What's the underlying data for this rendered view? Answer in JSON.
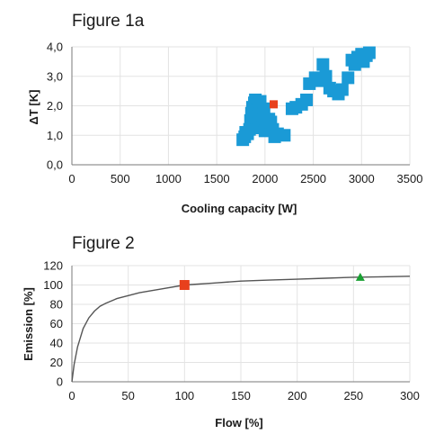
{
  "chart_data": [
    {
      "type": "scatter",
      "title": "Figure 1a",
      "xlabel": "Cooling capacity [W]",
      "ylabel": "ΔT [K]",
      "xlim": [
        0,
        3500
      ],
      "ylim": [
        0,
        4
      ],
      "grid": true,
      "xticks": [
        "0",
        "500",
        "1000",
        "1500",
        "2000",
        "2500",
        "3000",
        "3500"
      ],
      "yticks": [
        "0,0",
        "1,0",
        "2,0",
        "3,0",
        "4,0"
      ],
      "series": [
        {
          "color": "#1a9ad6",
          "marker": "square",
          "points": [
            [
              1770,
              0.85
            ],
            [
              1790,
              0.95
            ],
            [
              1800,
              1.1
            ],
            [
              1820,
              1.05
            ],
            [
              1840,
              1.2
            ],
            [
              1850,
              1.5
            ],
            [
              1860,
              1.75
            ],
            [
              1870,
              1.95
            ],
            [
              1880,
              1.3
            ],
            [
              1890,
              2.1
            ],
            [
              1900,
              2.2
            ],
            [
              1910,
              1.6
            ],
            [
              1920,
              1.85
            ],
            [
              1930,
              2.05
            ],
            [
              1940,
              1.4
            ],
            [
              1950,
              2.15
            ],
            [
              1960,
              1.25
            ],
            [
              1970,
              1.7
            ],
            [
              1980,
              1.5
            ],
            [
              1990,
              1.9
            ],
            [
              2000,
              1.15
            ],
            [
              2010,
              1.35
            ],
            [
              2040,
              1.55
            ],
            [
              2060,
              1.45
            ],
            [
              2080,
              1.2
            ],
            [
              2100,
              0.95
            ],
            [
              2130,
              1.05
            ],
            [
              2200,
              1.0
            ],
            [
              2280,
              1.9
            ],
            [
              2320,
              1.95
            ],
            [
              2380,
              2.05
            ],
            [
              2430,
              2.2
            ],
            [
              2460,
              2.75
            ],
            [
              2520,
              2.95
            ],
            [
              2570,
              2.85
            ],
            [
              2600,
              3.4
            ],
            [
              2630,
              3.0
            ],
            [
              2670,
              2.6
            ],
            [
              2710,
              2.5
            ],
            [
              2760,
              2.4
            ],
            [
              2800,
              2.55
            ],
            [
              2860,
              2.95
            ],
            [
              2900,
              3.55
            ],
            [
              2930,
              3.4
            ],
            [
              2960,
              3.65
            ],
            [
              3000,
              3.75
            ],
            [
              3020,
              3.5
            ],
            [
              3050,
              3.7
            ],
            [
              3080,
              3.8
            ]
          ]
        },
        {
          "color": "#e8401c",
          "marker": "square",
          "points": [
            [
              2090,
              2.05
            ]
          ]
        }
      ]
    },
    {
      "type": "line",
      "title": "Figure 2",
      "xlabel": "Flow [%]",
      "ylabel": "Emission [%]",
      "xlim": [
        0,
        300
      ],
      "ylim": [
        0,
        120
      ],
      "grid": true,
      "xticks": [
        "0",
        "50",
        "100",
        "150",
        "200",
        "250",
        "300"
      ],
      "yticks": [
        "0",
        "20",
        "40",
        "60",
        "80",
        "100",
        "120"
      ],
      "curve": {
        "color": "#555555",
        "x": [
          0,
          2,
          5,
          10,
          15,
          20,
          25,
          30,
          40,
          50,
          60,
          70,
          80,
          100,
          125,
          150,
          175,
          200,
          225,
          250,
          275,
          300
        ],
        "y": [
          0,
          18,
          36,
          55,
          66,
          73,
          78,
          81,
          86,
          89,
          92,
          94,
          96,
          100,
          102,
          104,
          105,
          106,
          107,
          108,
          108.5,
          109
        ]
      },
      "markers": [
        {
          "x": 100,
          "y": 100,
          "color": "#e8401c",
          "shape": "square"
        },
        {
          "x": 256,
          "y": 108,
          "color": "#1aa033",
          "shape": "triangle"
        }
      ]
    }
  ]
}
